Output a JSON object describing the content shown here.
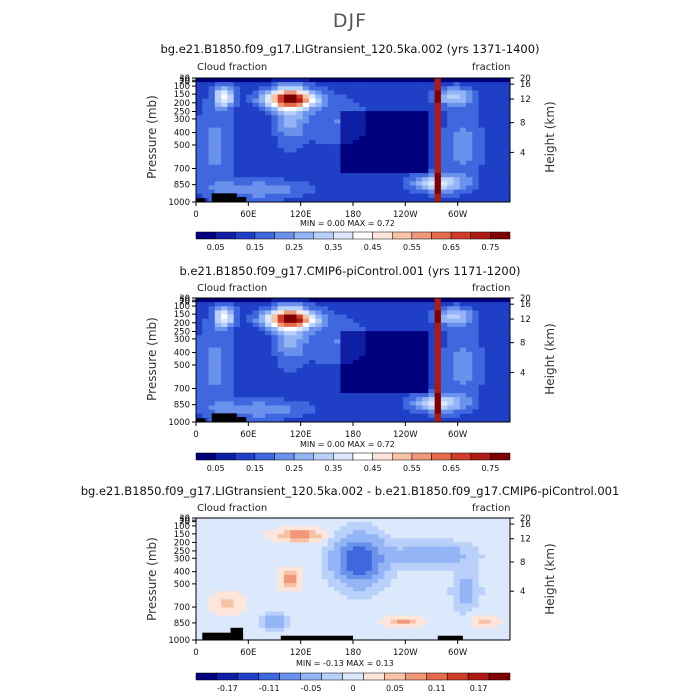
{
  "title": "DJF",
  "colors": {
    "c1": [
      "#00007f",
      "#0f1fa5",
      "#1f3fc6",
      "#3f67de",
      "#6a91ec",
      "#93b5f5",
      "#b9d1fa",
      "#dce8fb",
      "#ffffff",
      "#fde6d9",
      "#f8c2a6",
      "#f09878",
      "#e46a4c",
      "#d03e2a",
      "#ad1b14",
      "#7f0000"
    ],
    "diff": [
      "#00007f",
      "#0f1fa5",
      "#1f3fc6",
      "#3f67de",
      "#6a91ec",
      "#93b5f5",
      "#b9d1fa",
      "#dce8fb",
      "#fde6d9",
      "#f8c2a6",
      "#f09878",
      "#e46a4c",
      "#d03e2a",
      "#ad1b14",
      "#7f0000"
    ],
    "terrain": "#000000"
  },
  "chart_data": [
    {
      "type": "heatmap",
      "title": "bg.e21.B1850.f09_g17.LIGtransient_120.5ka.002 (yrs 1371-1400)",
      "left_label": "Cloud fraction",
      "right_label": "fraction",
      "ylabel": "Pressure (mb)",
      "y2label": "Height (km)",
      "x_ticks": [
        "0",
        "60E",
        "120E",
        "180",
        "120W",
        "60W"
      ],
      "y_ticks": [
        "1000",
        "850",
        "700",
        "500",
        "400",
        "300",
        "250",
        "200",
        "150",
        "100",
        "70",
        "50",
        "30"
      ],
      "y2_ticks": [
        "20",
        "16",
        "12",
        "8",
        "4"
      ],
      "min_max": "MIN =    0.00   MAX =    0.72",
      "colorbar_labels": [
        "0.05",
        "0.15",
        "0.25",
        "0.35",
        "0.45",
        "0.55",
        "0.65",
        "0.75"
      ]
    },
    {
      "type": "heatmap",
      "title": "b.e21.B1850.f09_g17.CMIP6-piControl.001 (yrs 1171-1200)",
      "left_label": "Cloud fraction",
      "right_label": "fraction",
      "ylabel": "Pressure (mb)",
      "y2label": "Height (km)",
      "x_ticks": [
        "0",
        "60E",
        "120E",
        "180",
        "120W",
        "60W"
      ],
      "y_ticks": [
        "1000",
        "850",
        "700",
        "500",
        "400",
        "300",
        "250",
        "200",
        "150",
        "100",
        "70",
        "50",
        "30"
      ],
      "y2_ticks": [
        "20",
        "16",
        "12",
        "8",
        "4"
      ],
      "min_max": "MIN =    0.00   MAX =    0.72",
      "colorbar_labels": [
        "0.05",
        "0.15",
        "0.25",
        "0.35",
        "0.45",
        "0.55",
        "0.65",
        "0.75"
      ]
    },
    {
      "type": "heatmap",
      "title": "bg.e21.B1850.f09_g17.LIGtransient_120.5ka.002 - b.e21.B1850.f09_g17.CMIP6-piControl.001",
      "left_label": "Cloud fraction",
      "right_label": "fraction",
      "ylabel": "Pressure (mb)",
      "y2label": "Height (km)",
      "x_ticks": [
        "0",
        "60E",
        "120E",
        "180",
        "120W",
        "60W"
      ],
      "y_ticks": [
        "1000",
        "850",
        "700",
        "500",
        "400",
        "300",
        "250",
        "200",
        "150",
        "100",
        "70",
        "50",
        "30"
      ],
      "y2_ticks": [
        "20",
        "16",
        "12",
        "8",
        "4"
      ],
      "min_max": "MIN =   -0.13   MAX =    0.13",
      "colorbar_labels": [
        "-0.17",
        "-0.11",
        "-0.05",
        "0",
        "0.05",
        "0.11",
        "0.17"
      ]
    }
  ]
}
